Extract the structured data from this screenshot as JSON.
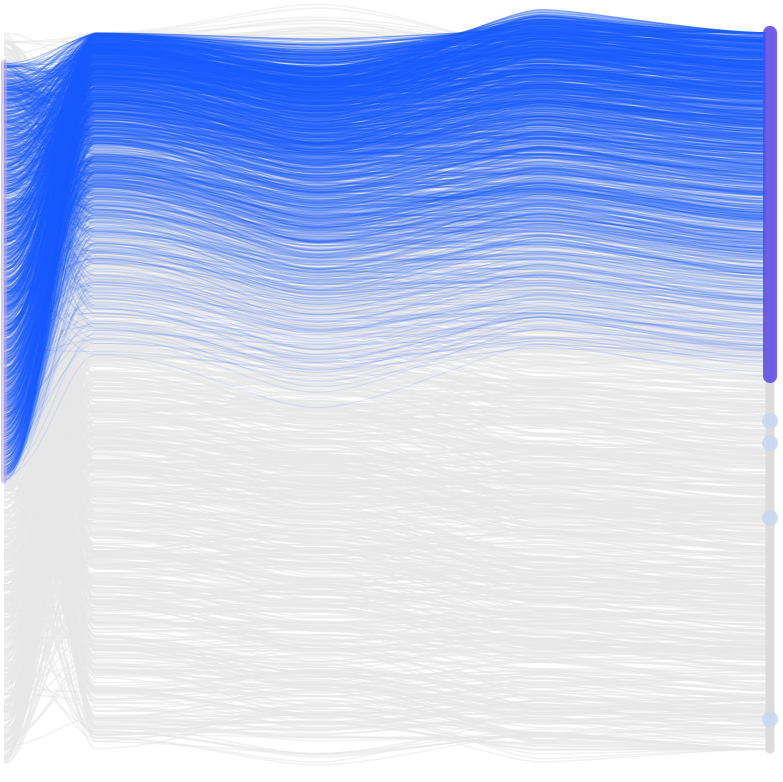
{
  "chart_data": {
    "type": "parallel_coordinates",
    "title": "",
    "xlabel": "",
    "ylabel": "",
    "axes": 3,
    "grid": false,
    "legend": "none",
    "colors": {
      "highlight": "#1a5cff",
      "context": "#e8e8e8",
      "axis_bar": "#5a46e6",
      "marker": "#c9d7f2"
    },
    "ylim": [
      0,
      1
    ],
    "highlight_band": {
      "first_axis": [
        0.38,
        0.94
      ],
      "middle_axis": [
        0.5,
        0.98
      ],
      "last_axis": [
        0.52,
        0.98
      ]
    },
    "context_band": {
      "first_axis": [
        0.0,
        0.98
      ],
      "middle_axis": [
        0.02,
        0.98
      ],
      "last_axis": [
        0.02,
        0.98
      ]
    },
    "highlight_line_count": 1400,
    "context_line_count": 1200,
    "last_axis_markers": [
      0.46,
      0.43,
      0.33,
      0.06
    ]
  }
}
